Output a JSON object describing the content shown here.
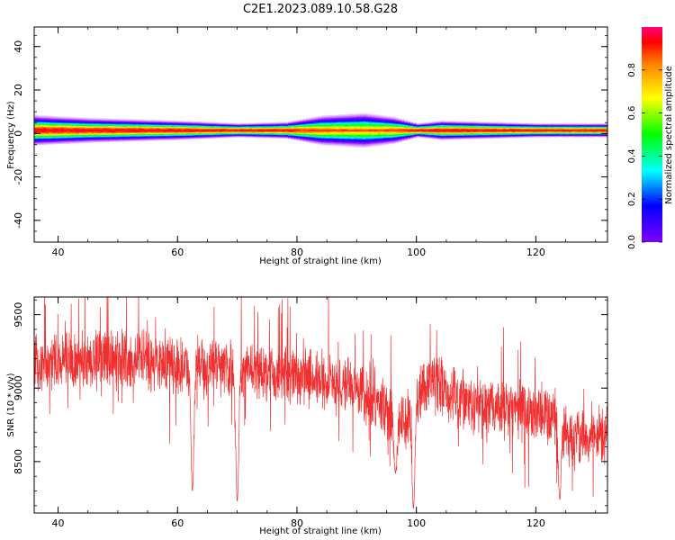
{
  "figure": {
    "title": "C2E1.2023.089.10.58.G28"
  },
  "chart_data": [
    {
      "type": "heatmap",
      "xlabel": "Height of straight line (km)",
      "ylabel": "Frequency (Hz)",
      "xlim": [
        36,
        132
      ],
      "ylim": [
        -50,
        49
      ],
      "xticks": [
        40,
        60,
        80,
        100,
        120
      ],
      "yticks": [
        -40,
        -20,
        0,
        20,
        40
      ],
      "colorbar": {
        "label": "Normalized spectral amplitude",
        "range": [
          0.0,
          1.0
        ],
        "ticks": [
          0.0,
          0.2,
          0.4,
          0.6,
          0.8
        ],
        "colormap": "gist_rainbow_r"
      },
      "band": {
        "center_freq_hz": 1.5,
        "profile": [
          {
            "x": 36,
            "halfwidth": 5.5,
            "peak": 1.0
          },
          {
            "x": 45,
            "halfwidth": 4.5,
            "peak": 1.0
          },
          {
            "x": 60,
            "halfwidth": 3.5,
            "peak": 1.0
          },
          {
            "x": 70,
            "halfwidth": 2.5,
            "peak": 1.0
          },
          {
            "x": 78,
            "halfwidth": 3.0,
            "peak": 1.0
          },
          {
            "x": 84,
            "halfwidth": 5.5,
            "peak": 0.85
          },
          {
            "x": 91,
            "halfwidth": 6.5,
            "peak": 0.8
          },
          {
            "x": 96,
            "halfwidth": 5.0,
            "peak": 0.85
          },
          {
            "x": 100,
            "halfwidth": 2.5,
            "peak": 1.0
          },
          {
            "x": 104,
            "halfwidth": 3.5,
            "peak": 1.0
          },
          {
            "x": 120,
            "halfwidth": 2.5,
            "peak": 1.0
          },
          {
            "x": 132,
            "halfwidth": 2.5,
            "peak": 1.0
          }
        ]
      }
    },
    {
      "type": "line",
      "xlabel": "Height of straight line (km)",
      "ylabel": "SNR (10 * v/v)",
      "xlim": [
        36,
        132
      ],
      "ylim": [
        8150,
        9620
      ],
      "xticks": [
        40,
        60,
        80,
        100,
        120
      ],
      "yticks": [
        8500,
        9000,
        9500
      ],
      "color": "#f03030",
      "trend": [
        {
          "x": 36,
          "y": 9150
        },
        {
          "x": 40,
          "y": 9180
        },
        {
          "x": 50,
          "y": 9200
        },
        {
          "x": 60,
          "y": 9150
        },
        {
          "x": 70,
          "y": 9130
        },
        {
          "x": 80,
          "y": 9080
        },
        {
          "x": 90,
          "y": 9000
        },
        {
          "x": 98,
          "y": 8750
        },
        {
          "x": 102,
          "y": 9050
        },
        {
          "x": 110,
          "y": 8870
        },
        {
          "x": 123,
          "y": 8820
        },
        {
          "x": 126,
          "y": 8640
        },
        {
          "x": 132,
          "y": 8680
        }
      ],
      "dips": [
        {
          "x": 62.5,
          "y": 8300
        },
        {
          "x": 70,
          "y": 8230
        },
        {
          "x": 99.5,
          "y": 8180
        },
        {
          "x": 124,
          "y": 8240
        },
        {
          "x": 96.5,
          "y": 8420
        }
      ]
    }
  ]
}
